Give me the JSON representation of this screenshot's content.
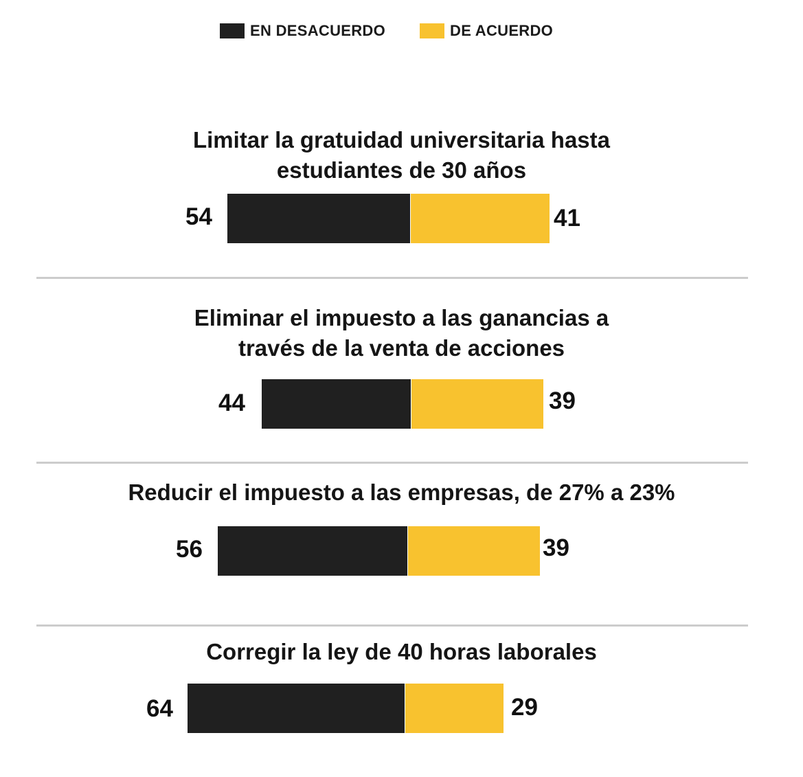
{
  "chart_data": {
    "type": "bar",
    "orientation": "horizontal",
    "stacked": true,
    "legend": [
      {
        "name": "EN DESACUERDO",
        "color": "#202020"
      },
      {
        "name": "DE ACUERDO",
        "color": "#f8c22f"
      }
    ],
    "categories": [
      [
        "Limitar la gratuidad universitaria hasta",
        "estudiantes de 30 años"
      ],
      [
        "Eliminar el impuesto a las ganancias a",
        "través de la venta de acciones"
      ],
      [
        "Reducir el impuesto a las empresas, de 27% a 23%"
      ],
      [
        "Corregir la ley de 40 horas laborales"
      ]
    ],
    "series": [
      {
        "name": "EN DESACUERDO",
        "values": [
          54,
          44,
          56,
          64
        ]
      },
      {
        "name": "DE ACUERDO",
        "values": [
          41,
          39,
          39,
          29
        ]
      }
    ],
    "value_labels": {
      "disagree": [
        "54",
        "44",
        "56",
        "64"
      ],
      "agree": [
        "41",
        "39",
        "39",
        "29"
      ]
    },
    "legend_placement": "top-center"
  }
}
